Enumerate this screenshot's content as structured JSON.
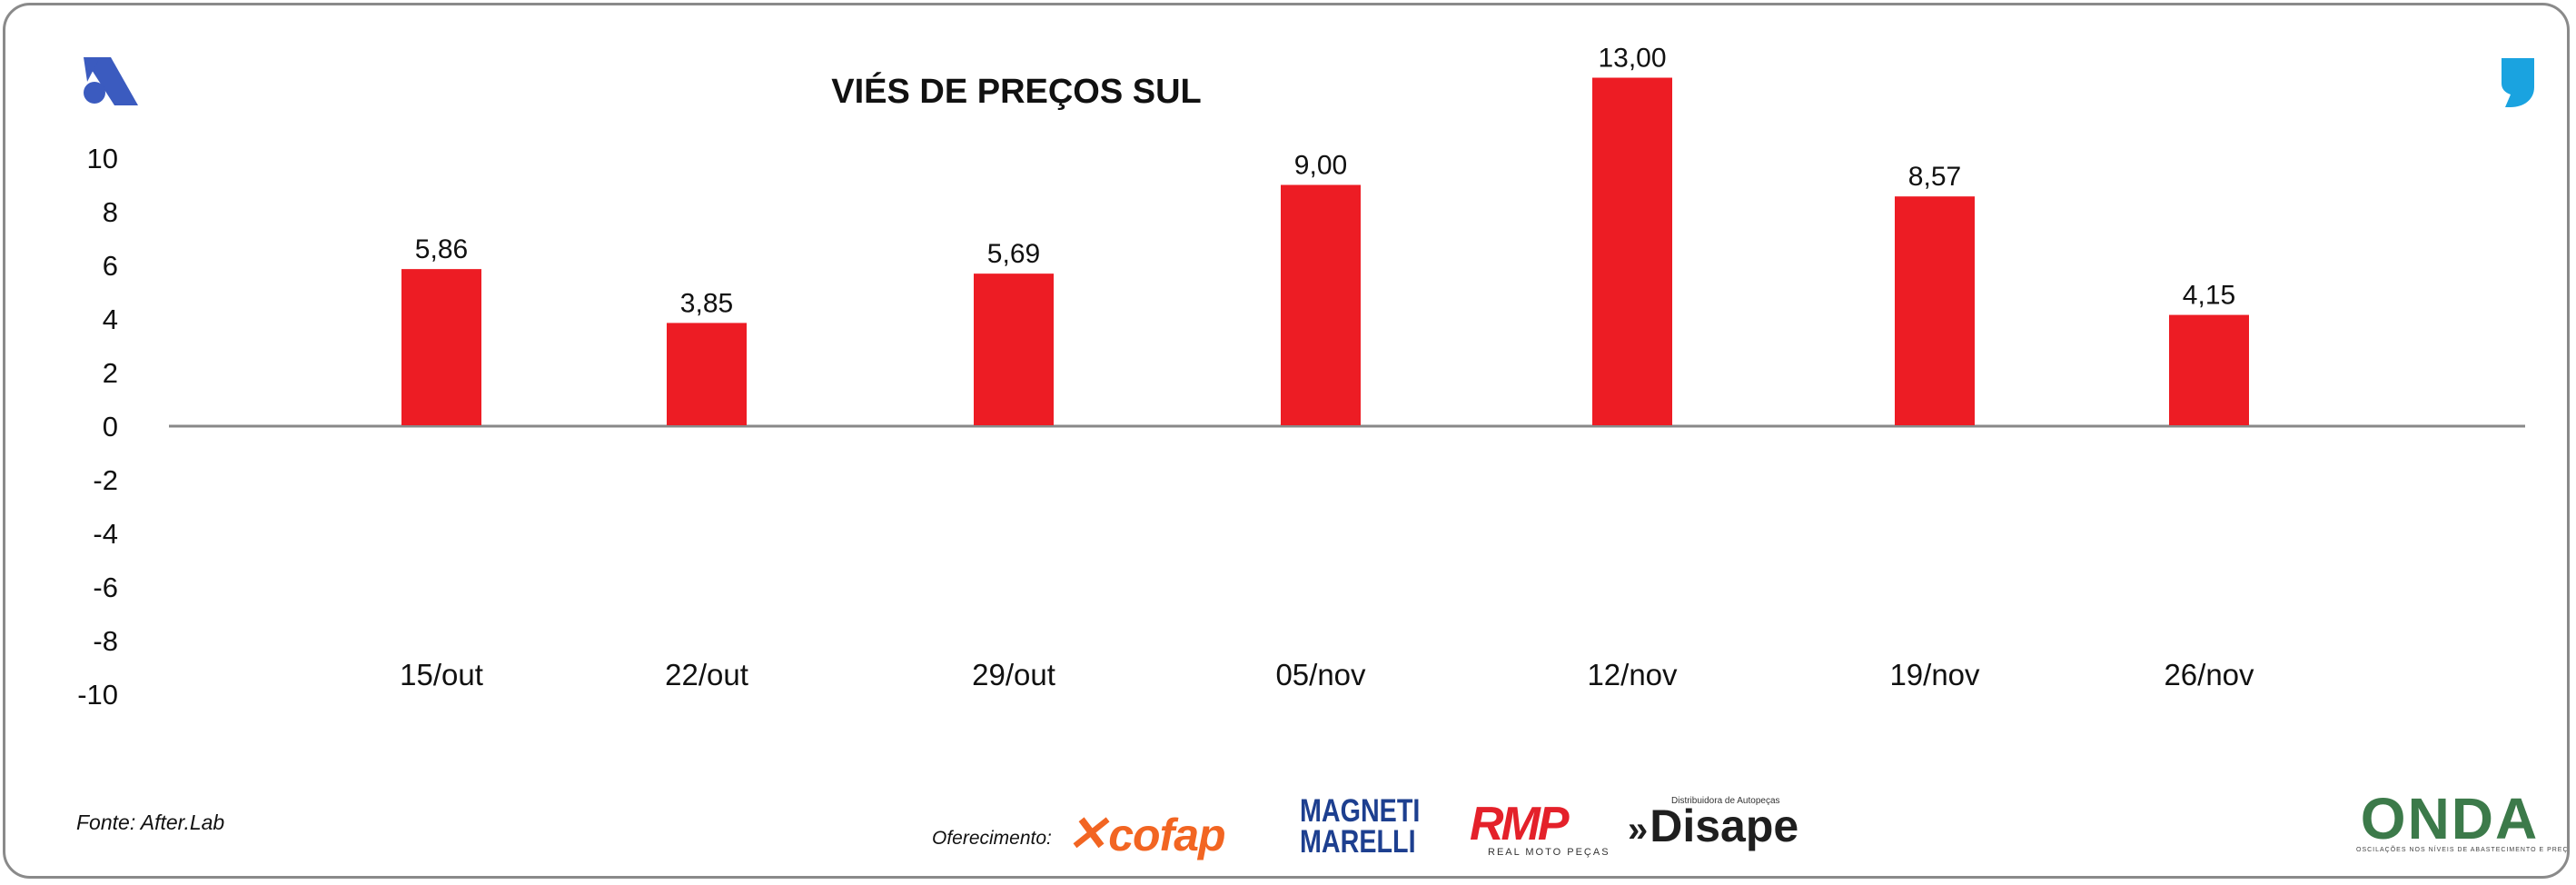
{
  "chart_data": {
    "type": "bar",
    "title": "VIÉS DE PREÇOS SUL",
    "categories": [
      "15/out",
      "22/out",
      "29/out",
      "05/nov",
      "12/nov",
      "19/nov",
      "26/nov"
    ],
    "values": [
      5.86,
      3.85,
      5.69,
      9.0,
      13.0,
      8.57,
      4.15
    ],
    "data_labels": [
      "5,86",
      "3,85",
      "5,69",
      "9,00",
      "13,00",
      "8,57",
      "4,15"
    ],
    "ylim": [
      -10,
      10
    ],
    "y_ticks": [
      10,
      8,
      6,
      4,
      2,
      0,
      -2,
      -4,
      -6,
      -8,
      -10
    ],
    "xlabel": "",
    "ylabel": "",
    "bar_color": "#ed1c24",
    "grid": false
  },
  "footer": {
    "source": "Fonte: After.Lab",
    "sponsor_label": "Oferecimento:",
    "sponsors": {
      "cofap": "cofap",
      "magneti_line1": "MAGNETI",
      "magneti_line2": "MARELLI",
      "rmp": "RMP",
      "rmp_sub": "REAL MOTO PEÇAS",
      "disape": "Disape",
      "disape_tag": "Distribuidora de Autopeças"
    },
    "onda": {
      "word": "ONDA",
      "tagline": "OSCILAÇÕES NOS NÍVEIS DE ABASTECIMENTO E PREÇO"
    }
  },
  "colors": {
    "bar": "#ed1c24",
    "logo_left": "#3b5bbf",
    "logo_right": "#1aa3e0",
    "axis": "#888888",
    "frame": "#8a8a8a"
  },
  "icons": {
    "top_left": "a-brand-logo-icon",
    "top_right": "comma-brand-logo-icon"
  }
}
